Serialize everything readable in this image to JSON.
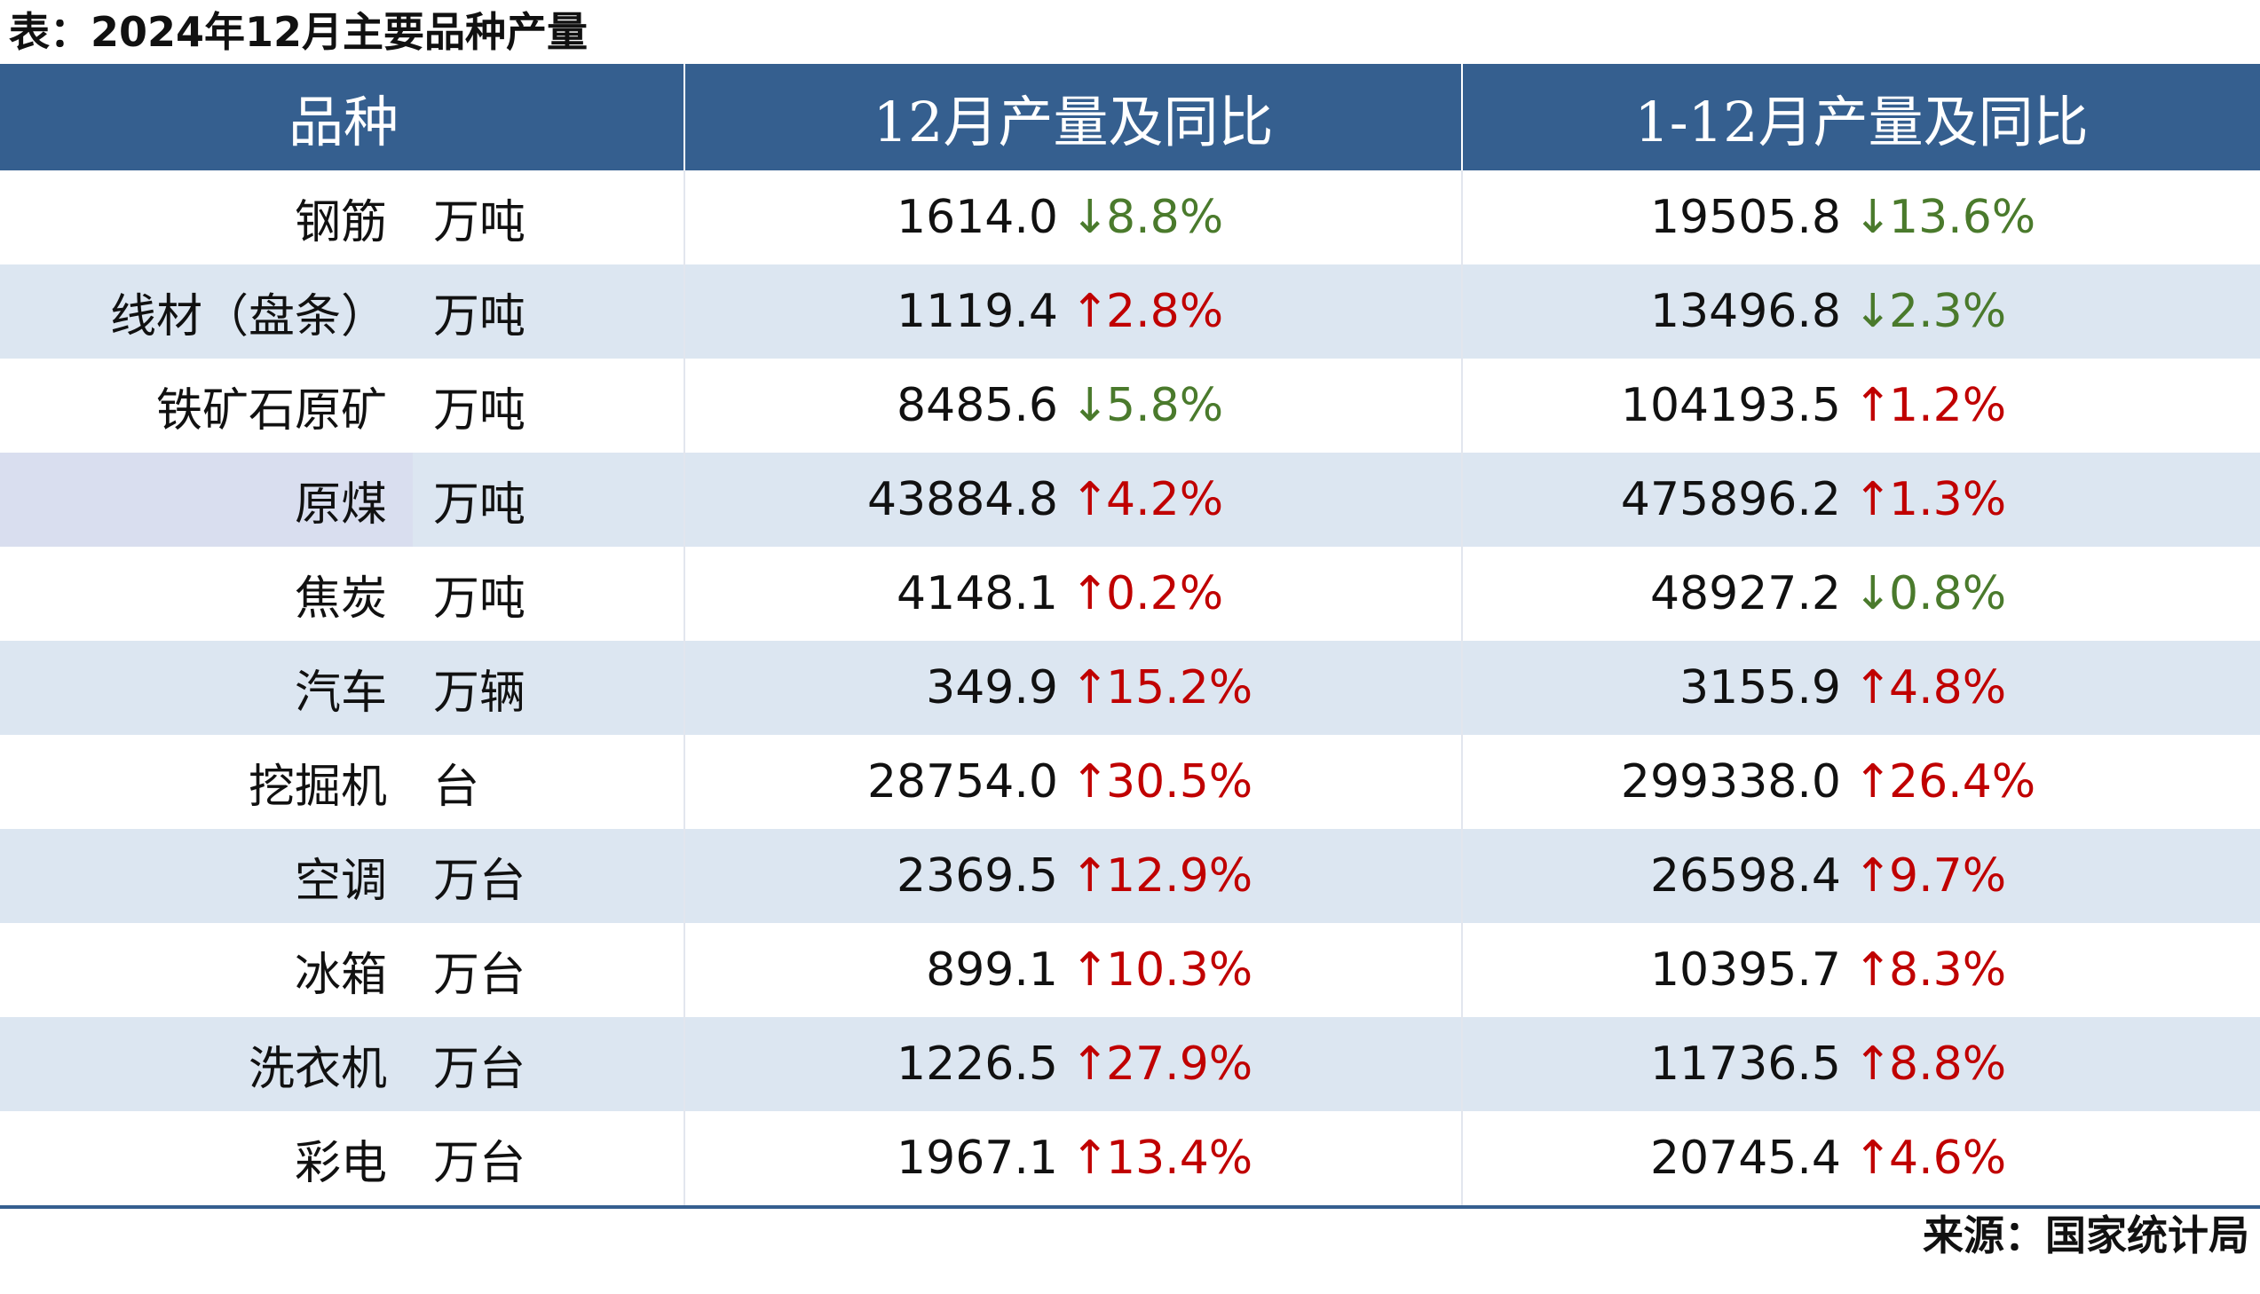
{
  "caption": "表：2024年12月主要品种产量",
  "headers": {
    "product": "品种",
    "month": "12月产量及同比",
    "ytd": "1-12月产量及同比"
  },
  "colors": {
    "header_bg": "#355f8f",
    "row_alt": "#dce6f1",
    "up": "#c00000",
    "down": "#4a7a2c"
  },
  "rows": [
    {
      "name": "钢筋",
      "unit": "万吨",
      "month_value": "1614.0",
      "month_arrow": "↓",
      "month_pct": "8.8%",
      "month_dir": "down",
      "ytd_value": "19505.8",
      "ytd_arrow": "↓",
      "ytd_pct": "13.6%",
      "ytd_dir": "down"
    },
    {
      "name": "线材（盘条）",
      "unit": "万吨",
      "month_value": "1119.4",
      "month_arrow": "↑",
      "month_pct": "2.8%",
      "month_dir": "up",
      "ytd_value": "13496.8",
      "ytd_arrow": "↓",
      "ytd_pct": "2.3%",
      "ytd_dir": "down"
    },
    {
      "name": "铁矿石原矿",
      "unit": "万吨",
      "month_value": "8485.6",
      "month_arrow": "↓",
      "month_pct": "5.8%",
      "month_dir": "down",
      "ytd_value": "104193.5",
      "ytd_arrow": "↑",
      "ytd_pct": "1.2%",
      "ytd_dir": "up"
    },
    {
      "name": "原煤",
      "unit": "万吨",
      "month_value": "43884.8",
      "month_arrow": "↑",
      "month_pct": "4.2%",
      "month_dir": "up",
      "ytd_value": "475896.2",
      "ytd_arrow": "↑",
      "ytd_pct": "1.3%",
      "ytd_dir": "up"
    },
    {
      "name": "焦炭",
      "unit": "万吨",
      "month_value": "4148.1",
      "month_arrow": "↑",
      "month_pct": "0.2%",
      "month_dir": "up",
      "ytd_value": "48927.2",
      "ytd_arrow": "↓",
      "ytd_pct": "0.8%",
      "ytd_dir": "down"
    },
    {
      "name": "汽车",
      "unit": "万辆",
      "month_value": "349.9",
      "month_arrow": "↑",
      "month_pct": "15.2%",
      "month_dir": "up",
      "ytd_value": "3155.9",
      "ytd_arrow": "↑",
      "ytd_pct": "4.8%",
      "ytd_dir": "up"
    },
    {
      "name": "挖掘机",
      "unit": "台",
      "month_value": "28754.0",
      "month_arrow": "↑",
      "month_pct": "30.5%",
      "month_dir": "up",
      "ytd_value": "299338.0",
      "ytd_arrow": "↑",
      "ytd_pct": "26.4%",
      "ytd_dir": "up"
    },
    {
      "name": "空调",
      "unit": "万台",
      "month_value": "2369.5",
      "month_arrow": "↑",
      "month_pct": "12.9%",
      "month_dir": "up",
      "ytd_value": "26598.4",
      "ytd_arrow": "↑",
      "ytd_pct": "9.7%",
      "ytd_dir": "up"
    },
    {
      "name": "冰箱",
      "unit": "万台",
      "month_value": "899.1",
      "month_arrow": "↑",
      "month_pct": "10.3%",
      "month_dir": "up",
      "ytd_value": "10395.7",
      "ytd_arrow": "↑",
      "ytd_pct": "8.3%",
      "ytd_dir": "up"
    },
    {
      "name": "洗衣机",
      "unit": "万台",
      "month_value": "1226.5",
      "month_arrow": "↑",
      "month_pct": "27.9%",
      "month_dir": "up",
      "ytd_value": "11736.5",
      "ytd_arrow": "↑",
      "ytd_pct": "8.8%",
      "ytd_dir": "up"
    },
    {
      "name": "彩电",
      "unit": "万台",
      "month_value": "1967.1",
      "month_arrow": "↑",
      "month_pct": "13.4%",
      "month_dir": "up",
      "ytd_value": "20745.4",
      "ytd_arrow": "↑",
      "ytd_pct": "4.6%",
      "ytd_dir": "up"
    }
  ],
  "source": "来源：国家统计局"
}
